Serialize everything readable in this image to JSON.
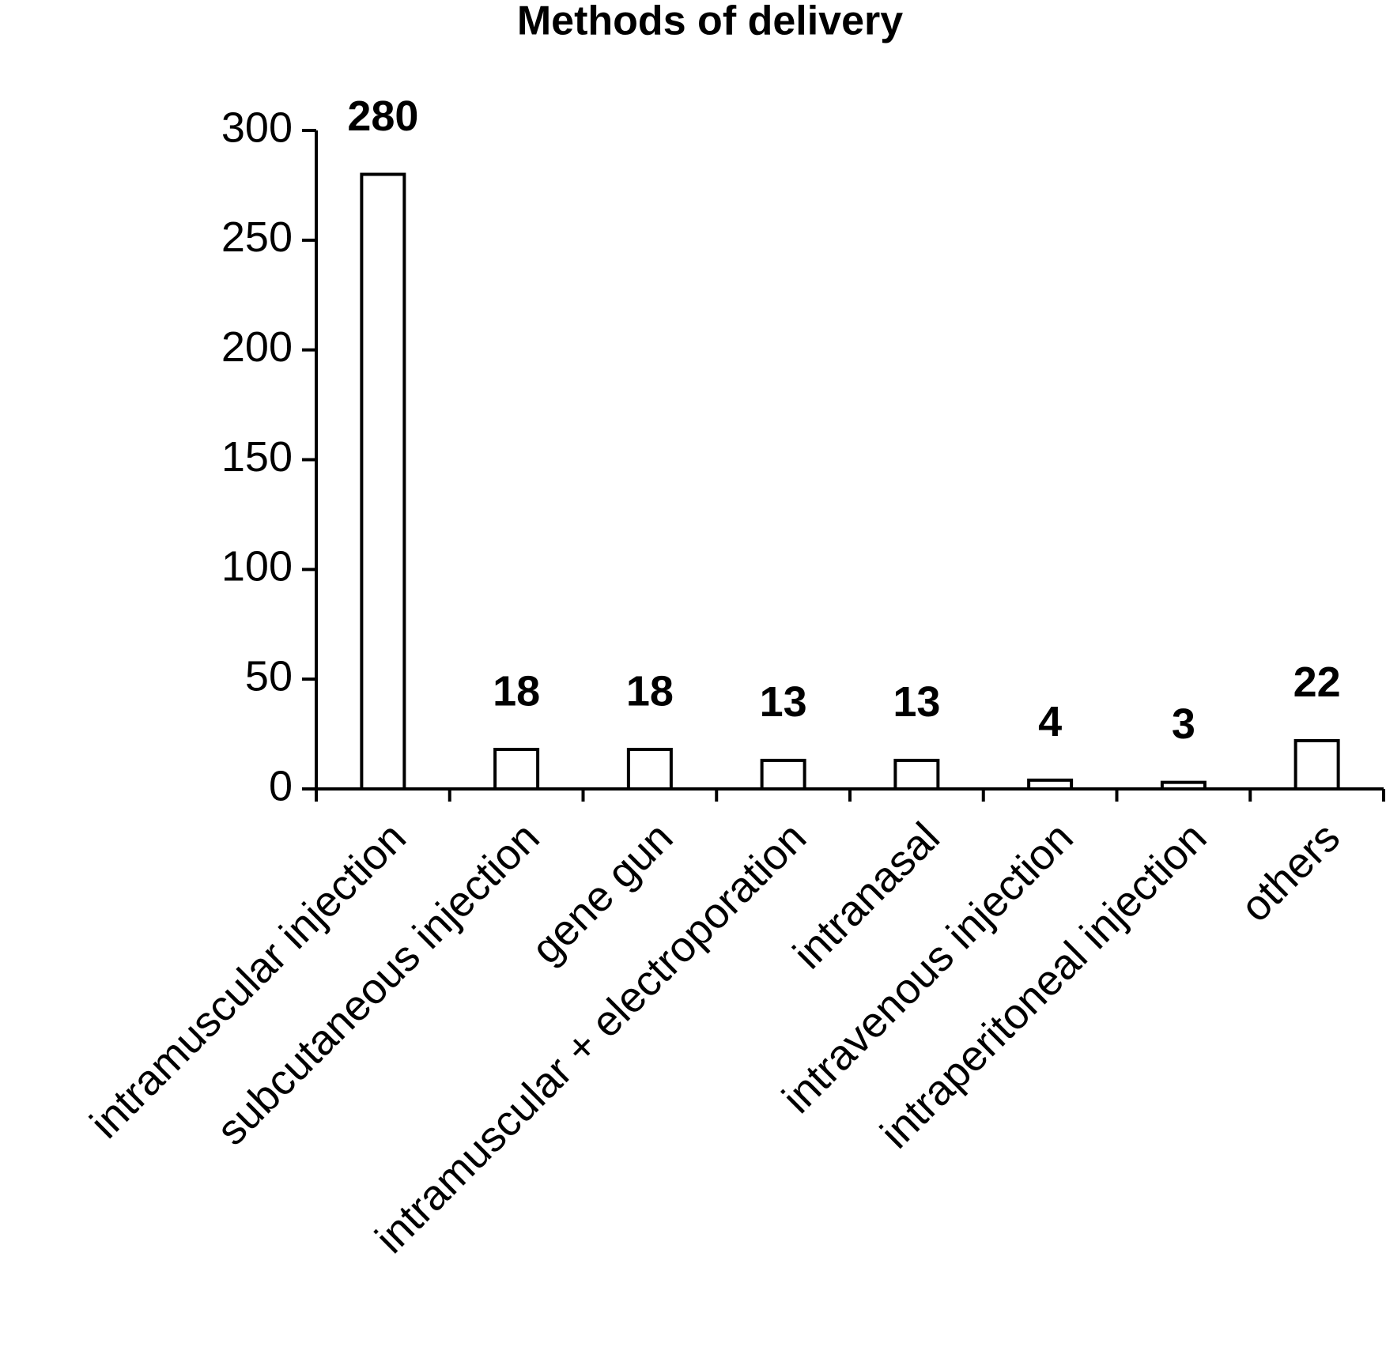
{
  "chart_data": {
    "type": "bar",
    "title": "Methods of delivery",
    "categories": [
      "intramuscular injection",
      "subcutaneous injection",
      "gene gun",
      "intramuscular + electroporation",
      "intranasal",
      "intravenous injection",
      "intraperitoneal injection",
      "others"
    ],
    "values": [
      280,
      18,
      18,
      13,
      13,
      4,
      3,
      22
    ],
    "color": "#ffffff",
    "ylim": [
      0,
      300
    ],
    "yticks": [
      0,
      50,
      100,
      150,
      200,
      250,
      300
    ],
    "grid": false
  }
}
